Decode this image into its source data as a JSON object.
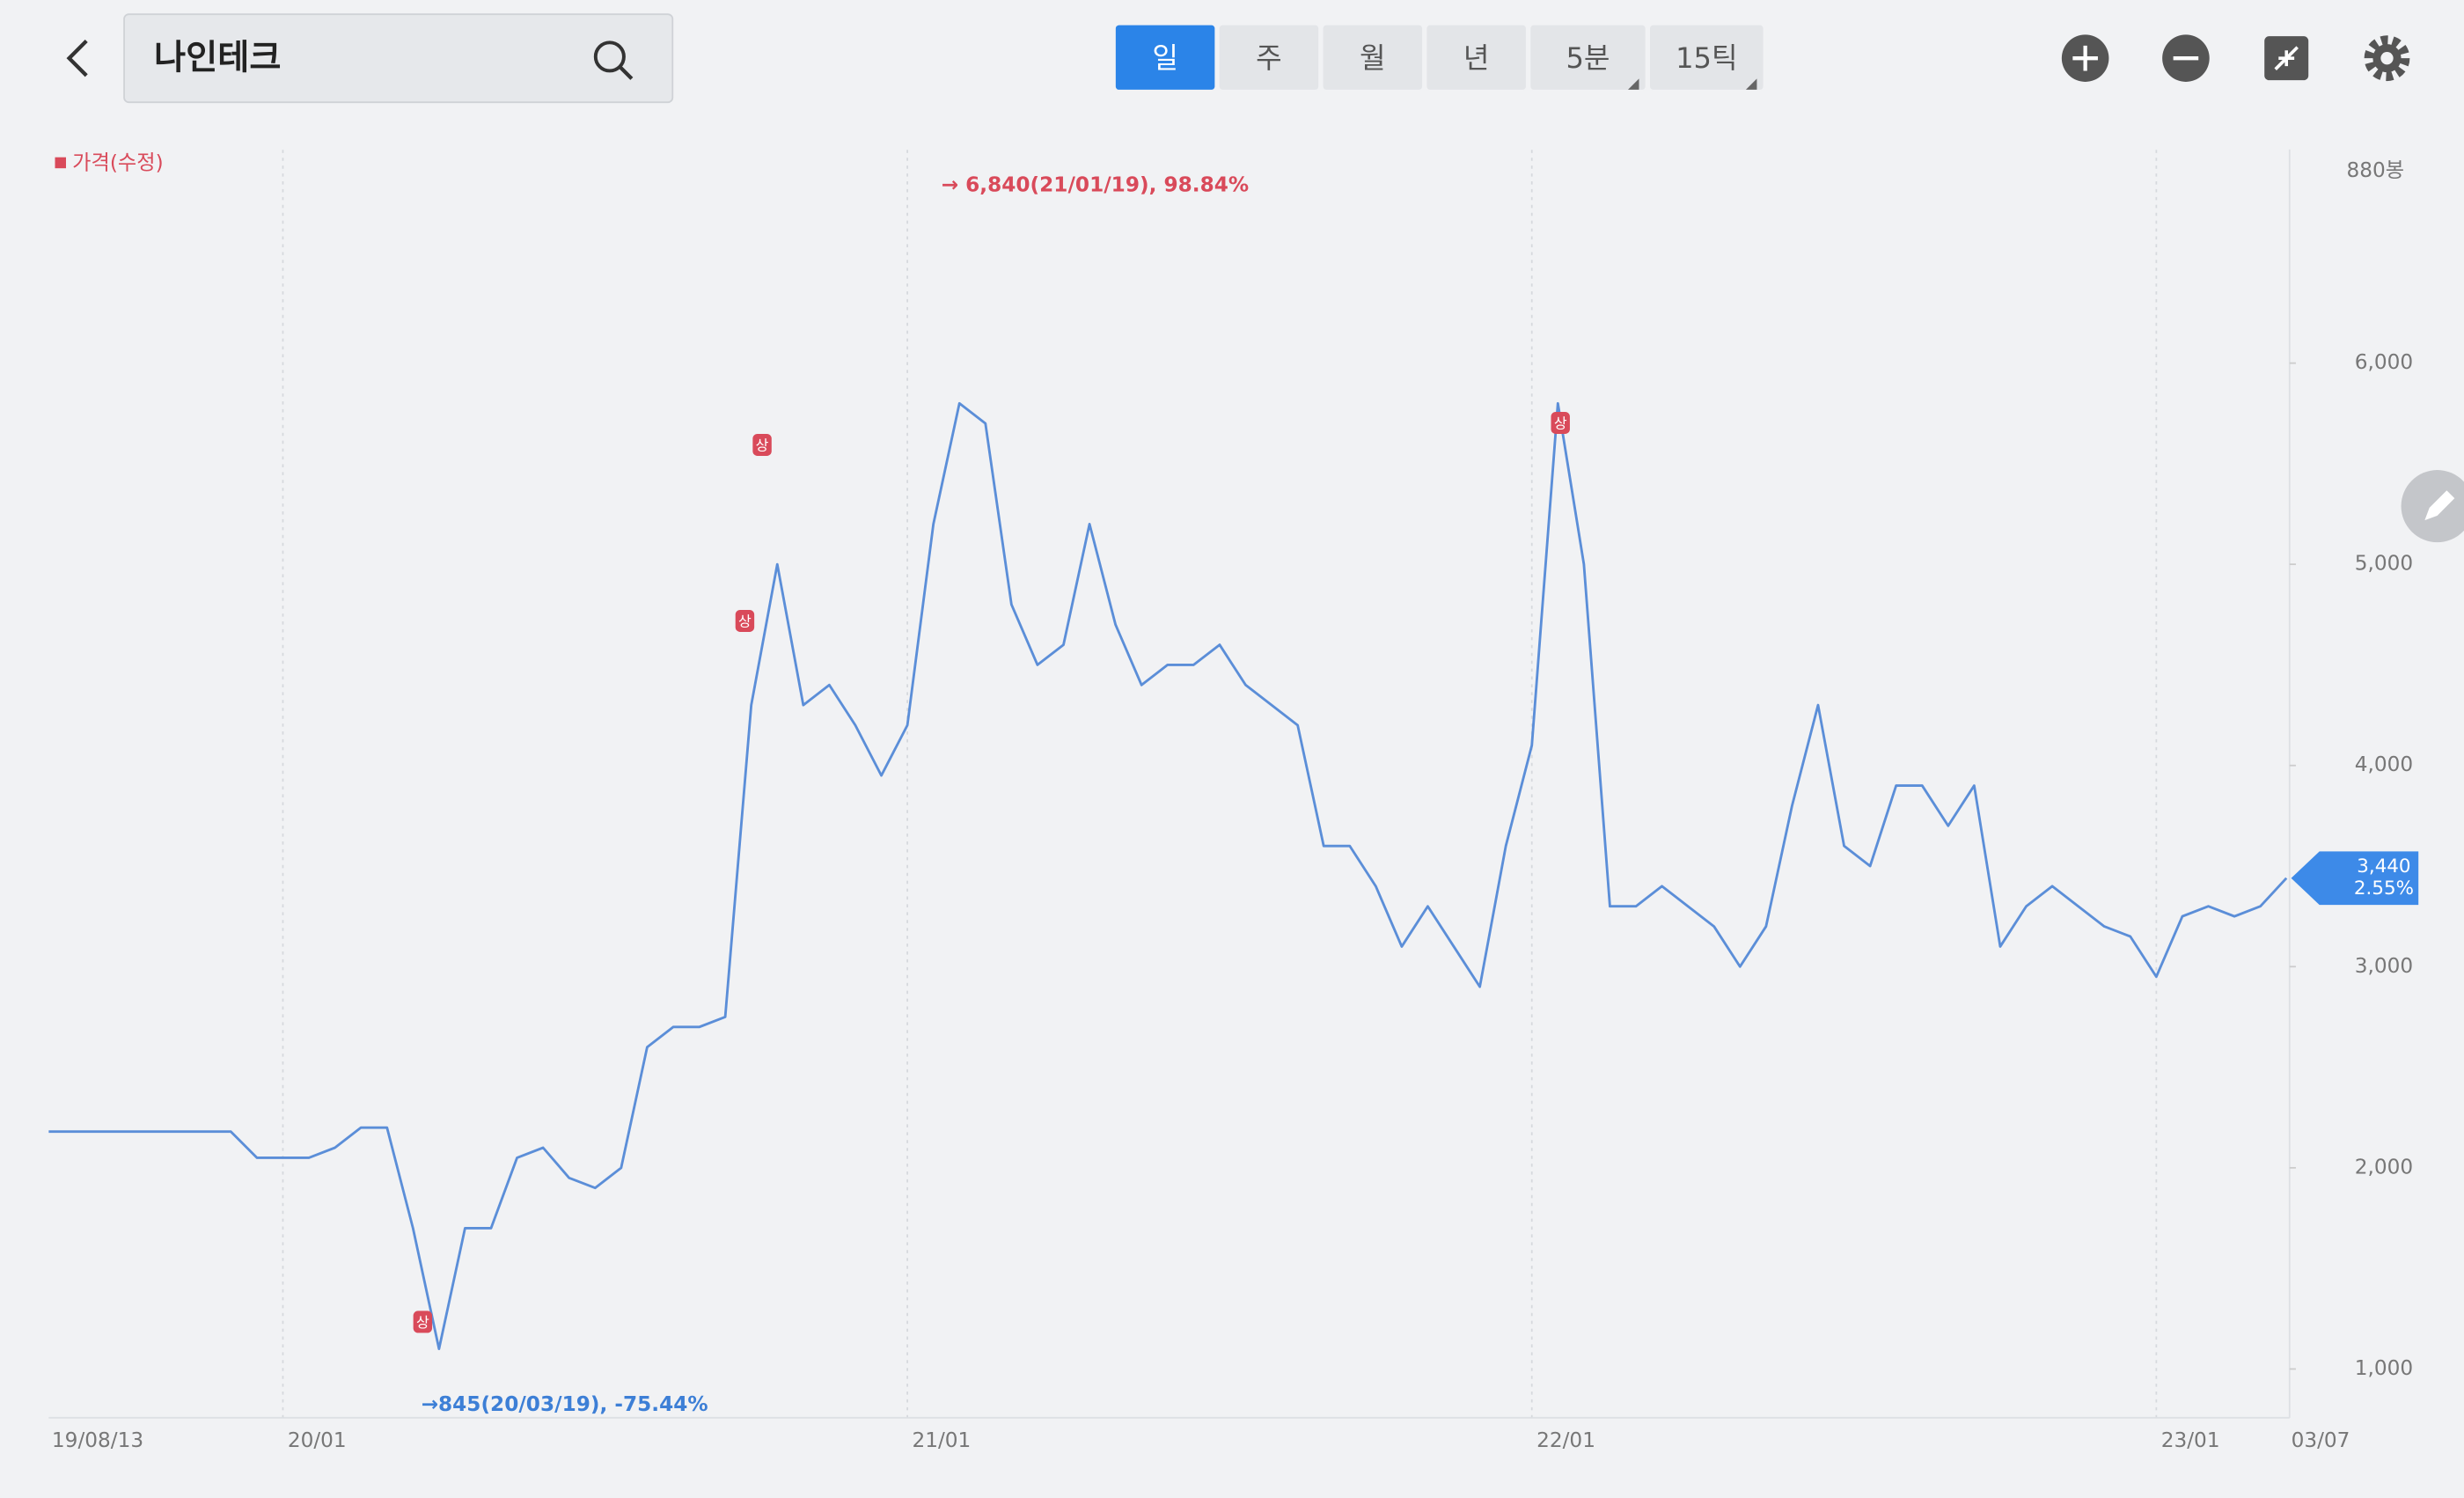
{
  "search": {
    "query": "나인테크"
  },
  "tabs": [
    "일",
    "주",
    "월",
    "년",
    "5분",
    "15틱"
  ],
  "active_tab": "일",
  "chart_data": {
    "type": "line",
    "bar_count": "880봉",
    "categories": [
      "19/08/13",
      null,
      null,
      null,
      null,
      null,
      null,
      null,
      null,
      "20/01",
      null,
      null,
      null,
      null,
      null,
      null,
      null,
      null,
      null,
      null,
      null,
      null,
      null,
      null,
      null,
      null,
      null,
      null,
      null,
      null,
      null,
      null,
      null,
      "21/01",
      null,
      null,
      null,
      null,
      null,
      null,
      null,
      null,
      null,
      null,
      null,
      null,
      null,
      null,
      null,
      null,
      null,
      null,
      null,
      null,
      null,
      null,
      null,
      "22/01",
      null,
      null,
      null,
      null,
      null,
      null,
      null,
      null,
      null,
      null,
      null,
      null,
      null,
      null,
      null,
      null,
      null,
      null,
      null,
      null,
      null,
      null,
      null,
      "23/01",
      null,
      null,
      null,
      null,
      "03/07"
    ],
    "series": [
      {
        "name": "가격(수정)",
        "color": "#5b8ed8",
        "values": [
          2180,
          2180,
          2180,
          2180,
          2180,
          2180,
          2180,
          2180,
          2050,
          2050,
          2050,
          2100,
          2200,
          2200,
          1700,
          1100,
          1700,
          1700,
          2050,
          2100,
          1950,
          1900,
          2000,
          2600,
          2700,
          2700,
          2750,
          4300,
          5000,
          4300,
          4400,
          4200,
          3950,
          4200,
          5200,
          5800,
          5700,
          4800,
          4500,
          4600,
          5200,
          4700,
          4400,
          4500,
          4500,
          4600,
          4400,
          4300,
          4200,
          3600,
          3600,
          3400,
          3100,
          3300,
          3100,
          2900,
          3600,
          4100,
          5800,
          5000,
          3300,
          3300,
          3400,
          3300,
          3200,
          3000,
          3200,
          3800,
          4300,
          3600,
          3500,
          3900,
          3900,
          3700,
          3900,
          3100,
          3300,
          3400,
          3300,
          3200,
          3150,
          2950,
          3250,
          3300,
          3250,
          3300,
          3440
        ]
      }
    ],
    "legend_color": "#d94a5a",
    "ylim": [
      760,
      7060
    ],
    "yticks": [
      {
        "value": 1000,
        "label": "1,000"
      },
      {
        "value": 2000,
        "label": "2,000"
      },
      {
        "value": 3000,
        "label": "3,000"
      },
      {
        "value": 4000,
        "label": "4,000"
      },
      {
        "value": 5000,
        "label": "5,000"
      },
      {
        "value": 6000,
        "label": "6,000"
      }
    ],
    "grid": true,
    "high_annotation": "→ 6,840(21/01/19), 98.84%",
    "low_annotation": "→845(20/03/19), -75.44%",
    "limit_up_label": "상",
    "current_price": {
      "value": 3440,
      "label": "3,440",
      "change": "2.55%"
    }
  }
}
